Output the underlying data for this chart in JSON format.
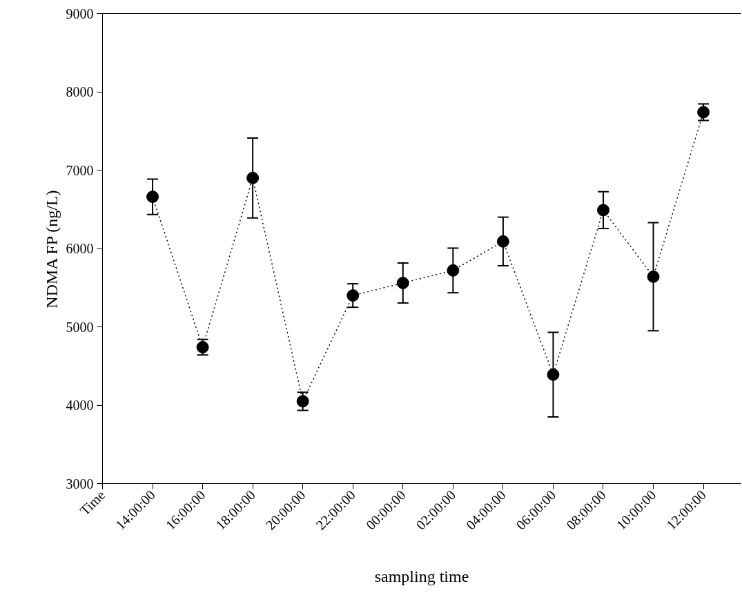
{
  "chart_data": {
    "type": "line",
    "xlabel": "sampling time",
    "ylabel": "NDMA FP (ng/L)",
    "categories": [
      "Time",
      "14:00:00",
      "16:00:00",
      "18:00:00",
      "20:00:00",
      "22:00:00",
      "00:00:00",
      "02:00:00",
      "04:00:00",
      "06:00:00",
      "08:00:00",
      "10:00:00",
      "12:00:00"
    ],
    "series": [
      {
        "color": "#000000",
        "values": [
          null,
          6660,
          4740,
          6900,
          4050,
          5400,
          5560,
          5720,
          6090,
          4390,
          6490,
          5640,
          7740
        ],
        "errors": [
          null,
          225,
          100,
          510,
          115,
          150,
          255,
          285,
          310,
          540,
          235,
          690,
          105
        ]
      }
    ],
    "ylim": [
      3000,
      9000
    ],
    "yticks": [
      3000,
      4000,
      5000,
      6000,
      7000,
      8000,
      9000
    ],
    "marker": "circle",
    "line_style": "dotted",
    "grid": false
  }
}
